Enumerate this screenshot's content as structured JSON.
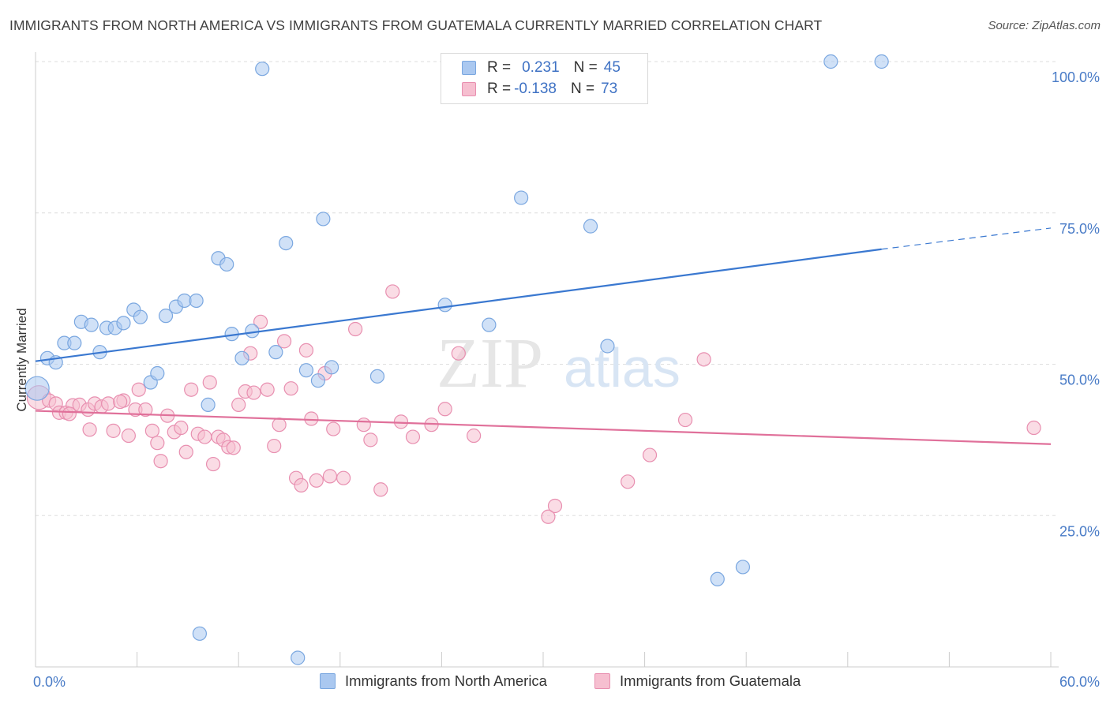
{
  "header": {
    "title": "IMMIGRANTS FROM NORTH AMERICA VS IMMIGRANTS FROM GUATEMALA CURRENTLY MARRIED CORRELATION CHART",
    "source": "Source: ZipAtlas.com"
  },
  "watermark": {
    "zip": "ZIP",
    "atlas": "atlas"
  },
  "legend": {
    "rows": [
      {
        "r_label": "R =",
        "r_value": "0.231",
        "n_label": "N =",
        "n_value": "45",
        "color": "#aac8f0",
        "border": "#7aa7e0"
      },
      {
        "r_label": "R =",
        "r_value": "-0.138",
        "n_label": "N =",
        "n_value": "73",
        "color": "#f6bfd0",
        "border": "#e88fb0"
      }
    ]
  },
  "bottom_legend": {
    "items": [
      {
        "label": "Immigrants from North America",
        "color": "#aac8f0",
        "border": "#7aa7e0"
      },
      {
        "label": "Immigrants from Guatemala",
        "color": "#f6bfd0",
        "border": "#e88fb0"
      }
    ]
  },
  "chart_data": {
    "type": "scatter",
    "title": "IMMIGRANTS FROM NORTH AMERICA VS IMMIGRANTS FROM GUATEMALA CURRENTLY MARRIED CORRELATION CHART",
    "xlabel": "",
    "ylabel": "Currently Married",
    "xlim": [
      0,
      60
    ],
    "ylim": [
      0,
      100
    ],
    "x_tick_labels": [
      "0.0%",
      "60.0%"
    ],
    "y_ticks": [
      25,
      50,
      75,
      100
    ],
    "y_tick_labels": [
      "25.0%",
      "50.0%",
      "75.0%",
      "100.0%"
    ],
    "grid": true,
    "legend_position": "top-center",
    "series": [
      {
        "name": "Immigrants from North America",
        "color": "#7aa7e0",
        "fill": "#aac8f0",
        "trend": {
          "x0": 0,
          "y0": 50.5,
          "x1": 50,
          "y1": 69.0,
          "dash_to_x": 60,
          "dash_to_y": 72.5,
          "color": "#3a78d0"
        },
        "points": [
          [
            0.1,
            46.0
          ],
          [
            0.7,
            51.0
          ],
          [
            1.2,
            50.3
          ],
          [
            1.7,
            53.5
          ],
          [
            2.3,
            53.5
          ],
          [
            2.7,
            57.0
          ],
          [
            3.3,
            56.5
          ],
          [
            3.8,
            52.0
          ],
          [
            4.2,
            56.0
          ],
          [
            4.7,
            56.0
          ],
          [
            5.2,
            56.8
          ],
          [
            5.8,
            59.0
          ],
          [
            6.2,
            57.8
          ],
          [
            6.8,
            47.0
          ],
          [
            7.2,
            48.5
          ],
          [
            7.7,
            58.0
          ],
          [
            8.3,
            59.5
          ],
          [
            8.8,
            60.5
          ],
          [
            9.5,
            60.5
          ],
          [
            9.7,
            5.5
          ],
          [
            10.2,
            43.3
          ],
          [
            10.8,
            67.5
          ],
          [
            11.3,
            66.5
          ],
          [
            11.6,
            55.0
          ],
          [
            12.2,
            51.0
          ],
          [
            12.8,
            55.5
          ],
          [
            13.4,
            98.8
          ],
          [
            14.2,
            52.0
          ],
          [
            14.8,
            70.0
          ],
          [
            15.5,
            1.5
          ],
          [
            16.0,
            49.0
          ],
          [
            16.7,
            47.3
          ],
          [
            17.0,
            74.0
          ],
          [
            17.5,
            49.5
          ],
          [
            20.2,
            48.0
          ],
          [
            24.2,
            59.8
          ],
          [
            26.8,
            56.5
          ],
          [
            28.7,
            77.5
          ],
          [
            32.0,
            100.0
          ],
          [
            32.8,
            72.8
          ],
          [
            33.8,
            53.0
          ],
          [
            40.3,
            14.5
          ],
          [
            41.8,
            16.5
          ],
          [
            47.0,
            100.0
          ],
          [
            50.0,
            100.0
          ]
        ]
      },
      {
        "name": "Immigrants from Guatemala",
        "color": "#e88fb0",
        "fill": "#f6bfd0",
        "trend": {
          "x0": 0,
          "y0": 42.3,
          "x1": 60,
          "y1": 36.8,
          "color": "#e0709a"
        },
        "points": [
          [
            0.2,
            44.5
          ],
          [
            0.8,
            44.0
          ],
          [
            1.2,
            43.5
          ],
          [
            1.4,
            42.0
          ],
          [
            1.8,
            42.0
          ],
          [
            2.2,
            43.2
          ],
          [
            2.6,
            43.3
          ],
          [
            3.1,
            42.5
          ],
          [
            3.2,
            39.2
          ],
          [
            3.5,
            43.5
          ],
          [
            3.9,
            43.0
          ],
          [
            4.3,
            43.5
          ],
          [
            4.6,
            39.0
          ],
          [
            5.2,
            44.0
          ],
          [
            5.5,
            38.2
          ],
          [
            5.9,
            42.5
          ],
          [
            6.1,
            45.8
          ],
          [
            6.5,
            42.5
          ],
          [
            6.9,
            39.0
          ],
          [
            7.2,
            37.0
          ],
          [
            7.4,
            34.0
          ],
          [
            7.8,
            41.5
          ],
          [
            8.2,
            38.8
          ],
          [
            8.6,
            39.5
          ],
          [
            8.9,
            35.5
          ],
          [
            9.2,
            45.8
          ],
          [
            9.6,
            38.5
          ],
          [
            10.0,
            38.0
          ],
          [
            10.3,
            47.0
          ],
          [
            10.5,
            33.5
          ],
          [
            10.8,
            38.0
          ],
          [
            11.1,
            37.5
          ],
          [
            11.4,
            36.3
          ],
          [
            11.7,
            36.2
          ],
          [
            12.0,
            43.3
          ],
          [
            12.4,
            45.5
          ],
          [
            12.7,
            51.8
          ],
          [
            12.9,
            45.3
          ],
          [
            13.3,
            57.0
          ],
          [
            13.7,
            45.8
          ],
          [
            14.1,
            36.5
          ],
          [
            14.4,
            40.0
          ],
          [
            14.7,
            53.8
          ],
          [
            15.1,
            46.0
          ],
          [
            15.4,
            31.2
          ],
          [
            15.7,
            30.0
          ],
          [
            16.0,
            52.3
          ],
          [
            16.3,
            41.0
          ],
          [
            16.6,
            30.8
          ],
          [
            17.1,
            48.5
          ],
          [
            17.4,
            31.5
          ],
          [
            17.6,
            39.3
          ],
          [
            18.2,
            31.2
          ],
          [
            18.9,
            55.8
          ],
          [
            19.4,
            40.0
          ],
          [
            19.8,
            37.5
          ],
          [
            20.4,
            29.3
          ],
          [
            21.1,
            62.0
          ],
          [
            21.6,
            40.5
          ],
          [
            22.3,
            38.0
          ],
          [
            23.4,
            40.0
          ],
          [
            24.2,
            42.6
          ],
          [
            25.0,
            51.8
          ],
          [
            25.9,
            38.2
          ],
          [
            30.3,
            24.8
          ],
          [
            30.7,
            26.6
          ],
          [
            35.0,
            30.6
          ],
          [
            36.3,
            35.0
          ],
          [
            38.4,
            40.8
          ],
          [
            39.5,
            50.8
          ],
          [
            59.0,
            39.5
          ],
          [
            2.0,
            41.8
          ],
          [
            5.0,
            43.8
          ]
        ]
      }
    ]
  }
}
